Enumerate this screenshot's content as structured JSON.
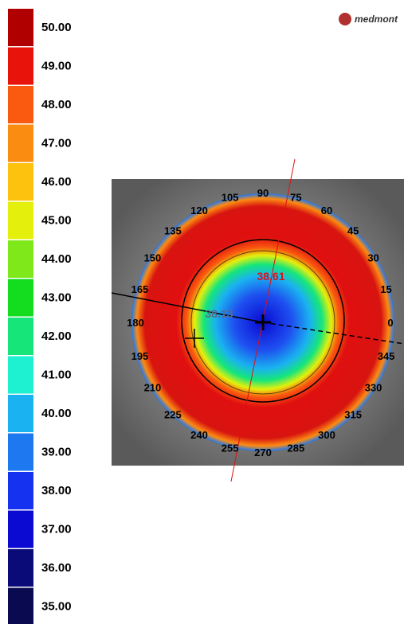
{
  "legend": {
    "items": [
      {
        "label": "50.00",
        "color": "#b00000"
      },
      {
        "label": "49.00",
        "color": "#e8140c"
      },
      {
        "label": "48.00",
        "color": "#fa5a10"
      },
      {
        "label": "47.00",
        "color": "#fb8c12"
      },
      {
        "label": "46.00",
        "color": "#fcc20e"
      },
      {
        "label": "45.00",
        "color": "#e4f00c"
      },
      {
        "label": "44.00",
        "color": "#7ee81a"
      },
      {
        "label": "43.00",
        "color": "#14dc1e"
      },
      {
        "label": "42.00",
        "color": "#16e67a"
      },
      {
        "label": "41.00",
        "color": "#1ef0d2"
      },
      {
        "label": "40.00",
        "color": "#1ab2f0"
      },
      {
        "label": "39.00",
        "color": "#1e78f0"
      },
      {
        "label": "38.00",
        "color": "#1432f0"
      },
      {
        "label": "37.00",
        "color": "#0a0ad2"
      },
      {
        "label": "36.00",
        "color": "#0a0a78"
      },
      {
        "label": "35.00",
        "color": "#0a0a50"
      }
    ]
  },
  "brand": "medmont",
  "map": {
    "angle_labels": [
      0,
      15,
      30,
      45,
      60,
      75,
      90,
      105,
      120,
      135,
      150,
      165,
      180,
      195,
      210,
      225,
      240,
      255,
      270,
      285,
      300,
      315,
      330,
      345
    ],
    "readings": {
      "apex": "38.61",
      "meridian": "38.13"
    }
  }
}
